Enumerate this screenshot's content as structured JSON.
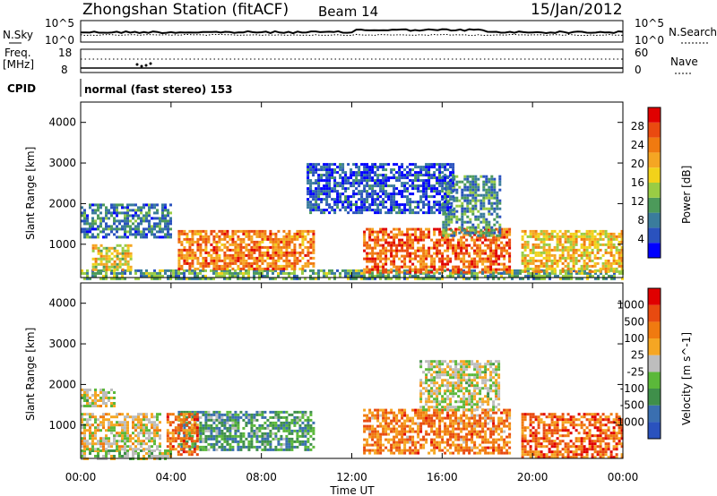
{
  "header": {
    "station": "Zhongshan Station (fitACF)",
    "beam": "Beam 14",
    "date": "15/Jan/2012"
  },
  "panels": {
    "nsky": {
      "left_label": "N.Sky",
      "right_label": "N.Search",
      "ticks": [
        "10^5",
        "10^0"
      ]
    },
    "freq": {
      "left_label_1": "Freq.",
      "left_label_2": "[MHz]",
      "left_ticks": [
        "18",
        "8"
      ],
      "right_ticks": [
        "60",
        "0"
      ],
      "right_label": "Nave"
    },
    "cpid": {
      "label": "CPID",
      "value": "normal (fast stereo) 153"
    }
  },
  "chart_data": [
    {
      "type": "heatmap",
      "title": "",
      "xlabel": "Time UT",
      "ylabel": "Slant Range [km]",
      "x_ticks": [
        "00:00",
        "04:00",
        "08:00",
        "12:00",
        "16:00",
        "20:00",
        "00:00"
      ],
      "y_ticks": [
        "1000",
        "2000",
        "3000",
        "4000"
      ],
      "xlim_hours": [
        0,
        24
      ],
      "ylim_km": [
        180,
        4500
      ],
      "colorbar": {
        "label": "Power [dB]",
        "ticks": [
          "4",
          "8",
          "12",
          "16",
          "20",
          "24",
          "28"
        ],
        "colors": [
          "#0000ff",
          "#2a52be",
          "#3a7c9c",
          "#4c9a5a",
          "#99cc44",
          "#f2d21a",
          "#f5a623",
          "#f07a10",
          "#ea4a10",
          "#e00000"
        ]
      },
      "regions": [
        {
          "t0": 0.0,
          "t1": 24.0,
          "r0": 180,
          "r1": 380,
          "level": 0.35
        },
        {
          "t0": 0.5,
          "t1": 2.2,
          "r0": 400,
          "r1": 1000,
          "level": 0.55
        },
        {
          "t0": 4.3,
          "t1": 10.3,
          "r0": 400,
          "r1": 1350,
          "level": 0.75
        },
        {
          "t0": 12.5,
          "t1": 19.0,
          "r0": 300,
          "r1": 1400,
          "level": 0.8
        },
        {
          "t0": 19.5,
          "t1": 24.0,
          "r0": 300,
          "r1": 1350,
          "level": 0.6
        },
        {
          "t0": 16.0,
          "t1": 18.6,
          "r0": 1200,
          "r1": 2700,
          "level": 0.3
        },
        {
          "t0": 0.0,
          "t1": 4.0,
          "r0": 1200,
          "r1": 2000,
          "level": 0.25
        },
        {
          "t0": 10.0,
          "t1": 16.5,
          "r0": 1800,
          "r1": 3000,
          "level": 0.15
        }
      ]
    },
    {
      "type": "heatmap",
      "title": "",
      "xlabel": "Time UT",
      "ylabel": "Slant Range [km]",
      "x_ticks": [
        "00:00",
        "04:00",
        "08:00",
        "12:00",
        "16:00",
        "20:00",
        "00:00"
      ],
      "y_ticks": [
        "1000",
        "2000",
        "3000",
        "4000"
      ],
      "xlim_hours": [
        0,
        24
      ],
      "ylim_km": [
        180,
        4500
      ],
      "colorbar": {
        "label": "Velocity [m s^-1]",
        "ticks": [
          "1000",
          "500",
          "100",
          "25",
          "-25",
          "-100",
          "-500",
          "-1000"
        ],
        "colors": [
          "#2a52be",
          "#3a6fb0",
          "#3f8f4a",
          "#5bb83a",
          "#bdbdbd",
          "#f5a623",
          "#f07a10",
          "#e84a10",
          "#e00000"
        ]
      },
      "regions": [
        {
          "t0": 0.0,
          "t1": 4.0,
          "r0": 180,
          "r1": 400,
          "level": 0.45
        },
        {
          "t0": 0.0,
          "t1": 3.5,
          "r0": 400,
          "r1": 1300,
          "level": 0.55
        },
        {
          "t0": 4.3,
          "t1": 10.3,
          "r0": 400,
          "r1": 1350,
          "level": 0.3
        },
        {
          "t0": 3.8,
          "t1": 5.2,
          "r0": 300,
          "r1": 1300,
          "level": 0.75
        },
        {
          "t0": 12.5,
          "t1": 19.0,
          "r0": 300,
          "r1": 1400,
          "level": 0.72
        },
        {
          "t0": 19.5,
          "t1": 24.0,
          "r0": 200,
          "r1": 1300,
          "level": 0.78
        },
        {
          "t0": 15.0,
          "t1": 18.5,
          "r0": 1400,
          "r1": 2600,
          "level": 0.5
        },
        {
          "t0": 0.0,
          "t1": 1.5,
          "r0": 1500,
          "r1": 1900,
          "level": 0.5
        }
      ]
    }
  ]
}
